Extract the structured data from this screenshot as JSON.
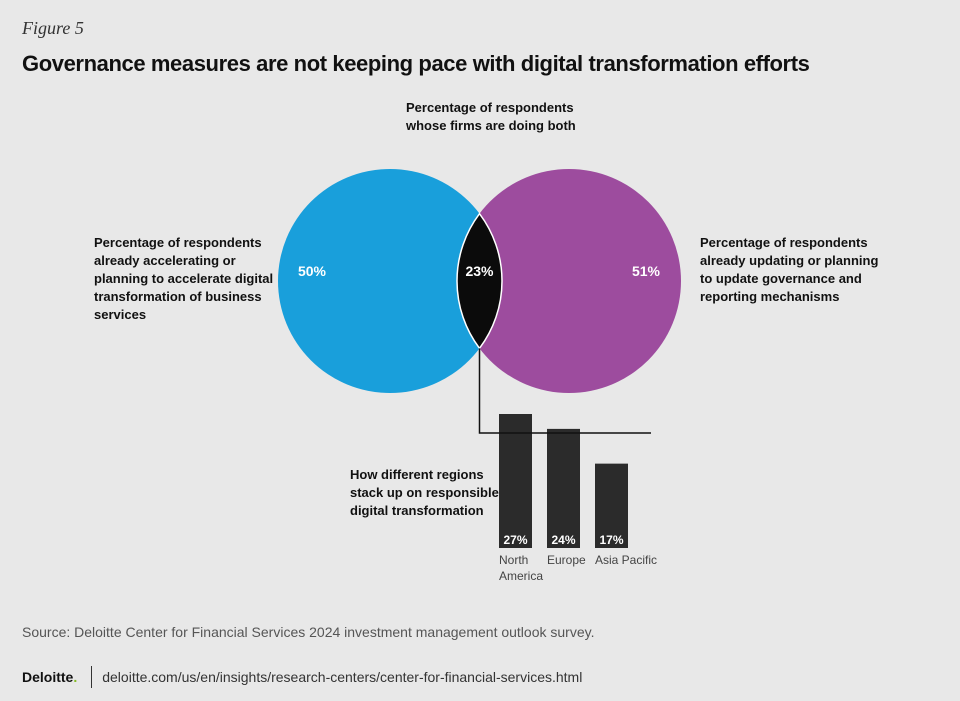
{
  "figure_label": "Figure 5",
  "title": "Governance measures are not keeping pace with digital transformation efforts",
  "colors": {
    "left_circle": "#199fdb",
    "right_circle": "#9d4c9e",
    "overlap": "#0b0b0b",
    "bars": "#2b2b2b",
    "brand_accent": "#86bc25"
  },
  "chart_data": [
    {
      "type": "venn",
      "sets": [
        {
          "name": "Percentage of respondents already accelerating or planning to accelerate digital transformation of business services",
          "value": 50,
          "label": "50%"
        },
        {
          "name": "Percentage of respondents already updating or planning to update governance and reporting mechanisms",
          "value": 51,
          "label": "51%"
        }
      ],
      "intersection": {
        "name": "Percentage of respondents whose firms are doing both",
        "value": 23,
        "label": "23%"
      }
    },
    {
      "type": "bar",
      "title": "How different regions stack up on responsible digital transformation",
      "categories": [
        "North America",
        "Europe",
        "Asia Pacific"
      ],
      "values": [
        27,
        24,
        17
      ],
      "value_labels": [
        "27%",
        "24%",
        "17%"
      ],
      "ylim": [
        0,
        27
      ]
    }
  ],
  "notes": {
    "overlap_lines": [
      "Percentage of respondents",
      "whose firms are doing both"
    ],
    "left_lines": [
      "Percentage of respondents",
      "already accelerating or",
      "planning to accelerate digital",
      "transformation of business",
      "services"
    ],
    "right_lines": [
      "Percentage of respondents",
      "already updating or planning",
      "to update governance and",
      "reporting mechanisms"
    ],
    "bar_lines": [
      "How different regions",
      "stack up on responsible",
      "digital transformation"
    ],
    "bar_category_lines": [
      [
        "North",
        "America"
      ],
      [
        "Europe"
      ],
      [
        "Asia Pacific"
      ]
    ]
  },
  "source": "Source: Deloitte Center for Financial Services 2024 investment management outlook survey.",
  "footer": {
    "brand": "Deloitte",
    "brand_dot": ".",
    "url": "deloitte.com/us/en/insights/research-centers/center-for-financial-services.html"
  }
}
